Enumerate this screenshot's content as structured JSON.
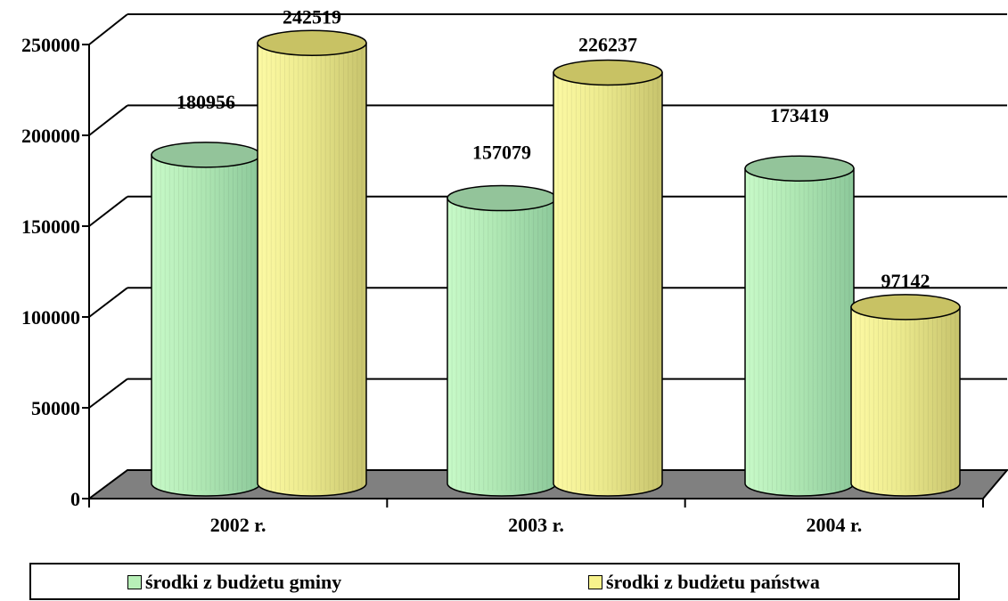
{
  "chart_data": {
    "type": "bar",
    "categories": [
      "2002 r.",
      "2003 r.",
      "2004 r."
    ],
    "series": [
      {
        "name": "środki z budżetu gminy",
        "values": [
          180956,
          157079,
          173419
        ],
        "color": "#b8f0b8"
      },
      {
        "name": "środki z budżetu państwa",
        "values": [
          242519,
          226237,
          97142
        ],
        "color": "#f7f28c"
      }
    ],
    "data_labels": [
      [
        "180956",
        "157079",
        "173419"
      ],
      [
        "242519",
        "226237",
        "97142"
      ]
    ],
    "y_ticks": [
      "0",
      "50000",
      "100000",
      "150000",
      "200000",
      "250000"
    ],
    "ylim": [
      0,
      250000
    ],
    "grid": true,
    "legend_position": "bottom",
    "floor_color": "#808080"
  }
}
